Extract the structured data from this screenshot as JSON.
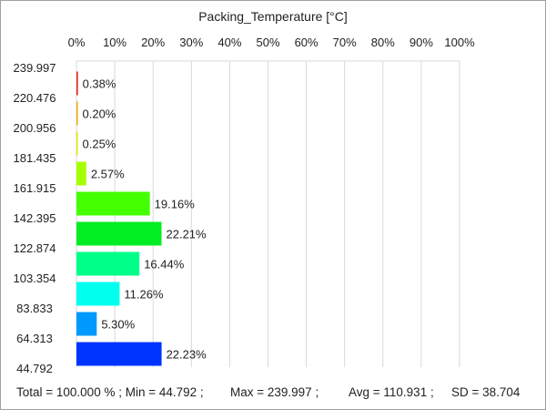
{
  "chart_data": {
    "type": "bar",
    "orientation": "horizontal",
    "title": "Packing_Temperature [°C]",
    "x_axis": {
      "position": "top",
      "ticks": [
        "0%",
        "10%",
        "20%",
        "30%",
        "40%",
        "50%",
        "60%",
        "70%",
        "80%",
        "90%",
        "100%"
      ],
      "range": [
        0,
        100
      ],
      "grid": true
    },
    "bin_edges": [
      "239.997",
      "220.476",
      "200.956",
      "181.435",
      "161.915",
      "142.395",
      "122.874",
      "103.354",
      "83.833",
      "64.313",
      "44.792"
    ],
    "values": [
      0.38,
      0.2,
      0.25,
      2.57,
      19.16,
      22.21,
      16.44,
      11.26,
      5.3,
      22.23
    ],
    "value_labels": [
      "0.38%",
      "0.20%",
      "0.25%",
      "2.57%",
      "19.16%",
      "22.21%",
      "16.44%",
      "11.26%",
      "5.30%",
      "22.23%"
    ],
    "bar_colors": [
      "#e8211a",
      "#f4a800",
      "#e8e800",
      "#a6ff00",
      "#44ff00",
      "#00ee22",
      "#00ff88",
      "#00ffee",
      "#0099ff",
      "#0033ff"
    ]
  },
  "footer": {
    "total": "Total = 100.000 % ; Min = 44.792 ;",
    "max": "Max = 239.997 ;",
    "avg": "Avg = 110.931 ;",
    "sd": "SD = 38.704"
  }
}
